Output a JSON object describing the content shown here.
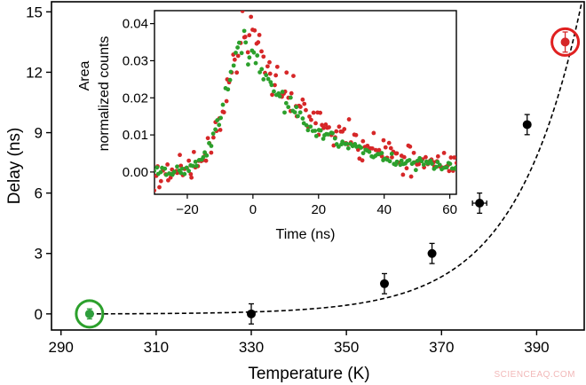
{
  "chart_data": [
    {
      "type": "scatter",
      "xlabel": "Temperature (K)",
      "ylabel": "Delay (ns)",
      "xlim": [
        288,
        400
      ],
      "ylim": [
        -0.8,
        15.5
      ],
      "xticks": [
        290,
        310,
        330,
        350,
        370,
        390
      ],
      "yticks": [
        0,
        3,
        6,
        9,
        12,
        15
      ],
      "grid": false,
      "series": [
        {
          "color": "#000000",
          "points": [
            {
              "x": 296,
              "y": 0.0,
              "yerr": 0.25,
              "xerr": 0
            },
            {
              "x": 330,
              "y": 0.0,
              "yerr": 0.5,
              "xerr": 0
            },
            {
              "x": 358,
              "y": 1.5,
              "yerr": 0.5,
              "xerr": 0
            },
            {
              "x": 368,
              "y": 3.0,
              "yerr": 0.5,
              "xerr": 0
            },
            {
              "x": 378,
              "y": 5.5,
              "yerr": 0.5,
              "xerr": 1.5
            },
            {
              "x": 388,
              "y": 9.4,
              "yerr": 0.5,
              "xerr": 0
            },
            {
              "x": 396,
              "y": 13.5,
              "yerr": 0.5,
              "xerr": 0
            }
          ]
        },
        {
          "type": "line",
          "style": "dashed",
          "color": "#000000",
          "model": "exponential",
          "x": [
            296,
            399.5
          ],
          "y": [
            0,
            15.5
          ]
        }
      ],
      "highlights": [
        {
          "x": 296,
          "y": 0.0,
          "color": "#2ca02c",
          "point_color": "#2e9e3c"
        },
        {
          "x": 396,
          "y": 13.5,
          "color": "#e02020",
          "point_color": "#d62728"
        }
      ]
    },
    {
      "type": "scatter",
      "inset": true,
      "xlabel": "Time (ns)",
      "ylabel": "Area\nnormalized counts",
      "xlim": [
        -30,
        62
      ],
      "ylim": [
        -0.006,
        0.0435
      ],
      "xticks": [
        -20,
        0,
        20,
        40,
        60
      ],
      "yticks": [
        0.0,
        0.01,
        0.02,
        0.03,
        0.04
      ],
      "ytick_labels": [
        "0.00",
        "0.01",
        "0.02",
        "0.03",
        "0.04"
      ],
      "grid": false,
      "series": [
        {
          "color": "#d62728",
          "shape": "pulse",
          "peak_x": -1,
          "peak_y": 0.037,
          "rise_width": 9,
          "decay_tau": 21,
          "x_range": [
            -30,
            62
          ],
          "n_points": 170,
          "noise": 0.0028
        },
        {
          "color": "#2ca02c",
          "shape": "pulse",
          "peak_x": -2,
          "peak_y": 0.035,
          "rise_width": 9,
          "decay_tau": 19,
          "x_range": [
            -30,
            62
          ],
          "n_points": 150,
          "noise": 0.0012
        }
      ]
    }
  ],
  "watermark": "SCIENCEAQ.COM"
}
